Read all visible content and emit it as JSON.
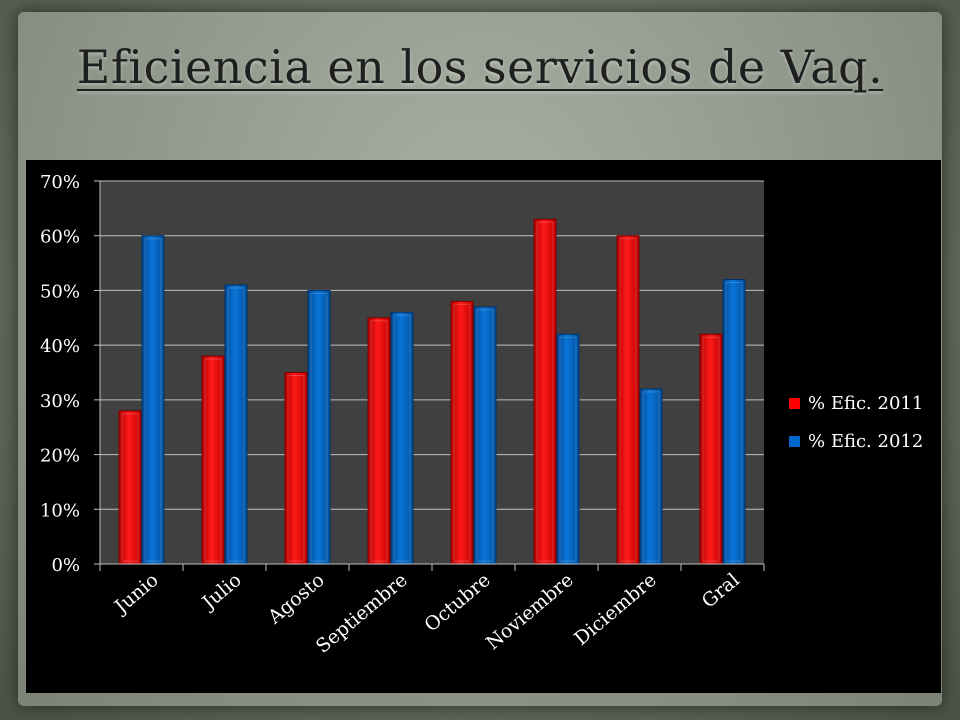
{
  "slide": {
    "title": "Eficiencia en los servicios de Vaq."
  },
  "colors": {
    "series_2011": "#ff0000",
    "series_2012": "#0066cc",
    "plot_bg": "#404040",
    "grid": "#bfbfbf"
  },
  "chart_data": {
    "type": "bar",
    "categories": [
      "Junio",
      "Julio",
      "Agosto",
      "Septiembre",
      "Octubre",
      "Noviembre",
      "Diciembre",
      "Gral"
    ],
    "series": [
      {
        "name": "% Efic. 2011",
        "values": [
          28,
          38,
          35,
          45,
          48,
          63,
          60,
          42
        ]
      },
      {
        "name": "% Efic. 2012",
        "values": [
          60,
          51,
          50,
          46,
          47,
          42,
          32,
          52
        ]
      }
    ],
    "y_ticks": [
      "0%",
      "10%",
      "20%",
      "30%",
      "40%",
      "50%",
      "60%",
      "70%"
    ],
    "ylim": [
      0,
      70
    ],
    "y_unit": "%",
    "grid": true,
    "legend_position": "right"
  }
}
